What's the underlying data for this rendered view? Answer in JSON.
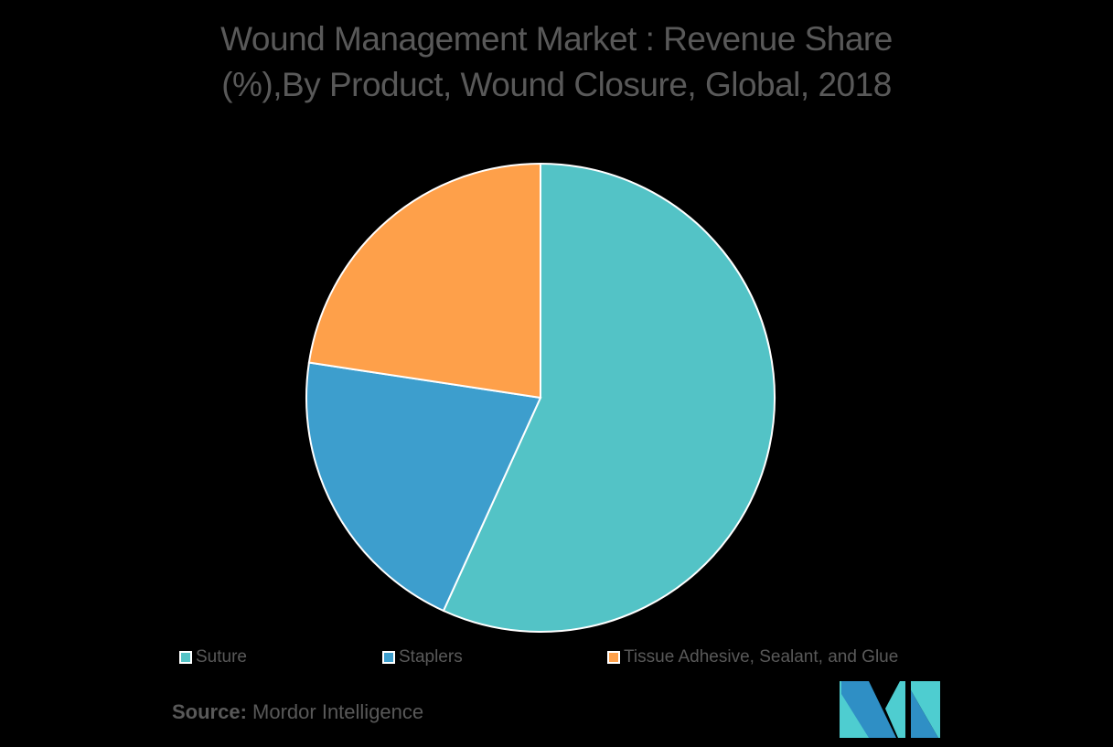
{
  "chart_data": {
    "type": "pie",
    "title": "Wound Management Market : Revenue Share (%),By Product, Wound Closure, Global, 2018",
    "title_lines": [
      "Wound Management Market : Revenue Share",
      "(%),By Product, Wound Closure, Global, 2018"
    ],
    "categories": [
      "Suture",
      "Staplers",
      "Tissue Adhesive, Sealant, and Glue"
    ],
    "values": [
      56.8,
      20.6,
      22.6
    ],
    "colors": [
      "#53c3c6",
      "#3d9ecd",
      "#fea04a"
    ],
    "start_angle_deg": 0,
    "direction": "clockwise",
    "data_labels": false,
    "legend_position": "bottom"
  },
  "legend": {
    "items": [
      {
        "label": "Suture",
        "color": "#53c3c6"
      },
      {
        "label": "Staplers",
        "color": "#3d9ecd"
      },
      {
        "label": "Tissue Adhesive, Sealant, and Glue",
        "color": "#fea04a"
      }
    ]
  },
  "footer": {
    "source_label": "Source:",
    "source_value": " Mordor Intelligence"
  },
  "colors": {
    "background": "#000000",
    "text": "#595959",
    "slice_border": "#ffffff"
  }
}
